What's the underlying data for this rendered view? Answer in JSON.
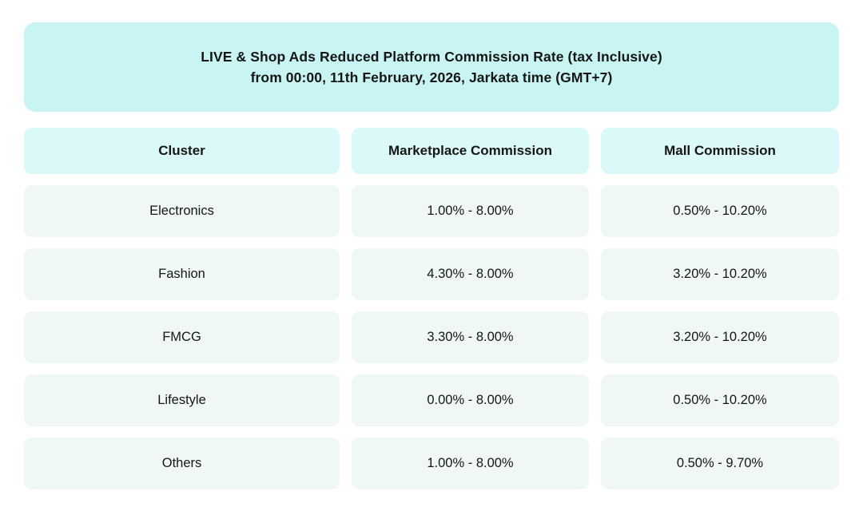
{
  "banner": {
    "line1": "LIVE & Shop Ads Reduced Platform Commission Rate (tax Inclusive)",
    "line2": "from 00:00, 11th February, 2026, Jarkata time (GMT+7)"
  },
  "chart_data": {
    "type": "table",
    "title": "LIVE & Shop Ads Reduced Platform Commission Rate (tax Inclusive) from 00:00, 11th February, 2026, Jarkata time (GMT+7)",
    "columns": [
      "Cluster",
      "Marketplace Commission",
      "Mall Commission"
    ],
    "rows": [
      [
        "Electronics",
        "1.00% - 8.00%",
        "0.50% - 10.20%"
      ],
      [
        "Fashion",
        "4.30% - 8.00%",
        "3.20% - 10.20%"
      ],
      [
        "FMCG",
        "3.30% - 8.00%",
        "3.20% - 10.20%"
      ],
      [
        "Lifestyle",
        "0.00% - 8.00%",
        "0.50% - 10.20%"
      ],
      [
        "Others",
        "1.00% - 8.00%",
        "0.50% - 9.70%"
      ]
    ]
  },
  "colors": {
    "banner_bg": "#C8F5F4",
    "header_cell_bg": "#DBF9F8",
    "data_cell_bg": "#EFF8F6",
    "text": "#161616",
    "page_bg": "#FFFFFF"
  }
}
